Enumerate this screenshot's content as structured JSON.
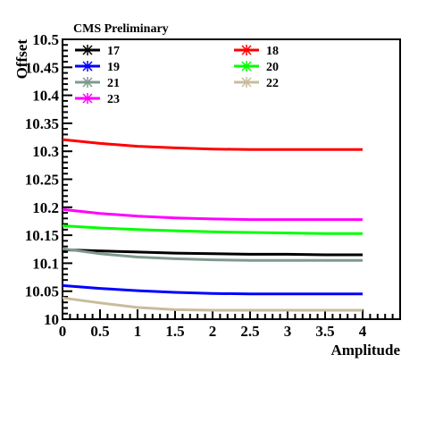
{
  "chart_data": {
    "type": "line",
    "title": "CMS Preliminary",
    "xlabel": "Amplitude",
    "ylabel": "Offset",
    "xlim": [
      0,
      4.5
    ],
    "ylim": [
      10,
      10.5
    ],
    "xticks": [
      "0",
      "0.5",
      "1",
      "1.5",
      "2",
      "2.5",
      "3",
      "3.5",
      "4"
    ],
    "yticks": [
      "10",
      "10.05",
      "10.1",
      "10.15",
      "10.2",
      "10.25",
      "10.3",
      "10.35",
      "10.4",
      "10.45",
      "10.5"
    ],
    "grid": false,
    "legend_position": "top",
    "x": [
      0,
      0.5,
      1,
      1.5,
      2,
      2.5,
      3,
      3.5,
      4
    ],
    "series": [
      {
        "name": "17",
        "color": "#000000",
        "values": [
          10.124,
          10.122,
          10.12,
          10.118,
          10.117,
          10.116,
          10.116,
          10.115,
          10.115
        ]
      },
      {
        "name": "18",
        "color": "#ff0000",
        "values": [
          10.321,
          10.314,
          10.309,
          10.306,
          10.304,
          10.303,
          10.303,
          10.303,
          10.303
        ]
      },
      {
        "name": "19",
        "color": "#0000ff",
        "values": [
          10.06,
          10.055,
          10.051,
          10.048,
          10.046,
          10.045,
          10.045,
          10.045,
          10.045
        ]
      },
      {
        "name": "20",
        "color": "#00ff00",
        "values": [
          10.167,
          10.163,
          10.16,
          10.158,
          10.156,
          10.155,
          10.154,
          10.153,
          10.153
        ]
      },
      {
        "name": "21",
        "color": "#7f9a8c",
        "values": [
          10.126,
          10.117,
          10.111,
          10.108,
          10.106,
          10.105,
          10.105,
          10.105,
          10.105
        ]
      },
      {
        "name": "22",
        "color": "#c8bc9c",
        "values": [
          10.038,
          10.029,
          10.021,
          10.017,
          10.016,
          10.016,
          10.016,
          10.016,
          10.016
        ]
      },
      {
        "name": "23",
        "color": "#ff00ff",
        "values": [
          10.196,
          10.189,
          10.184,
          10.181,
          10.179,
          10.178,
          10.178,
          10.178,
          10.178
        ]
      }
    ]
  }
}
